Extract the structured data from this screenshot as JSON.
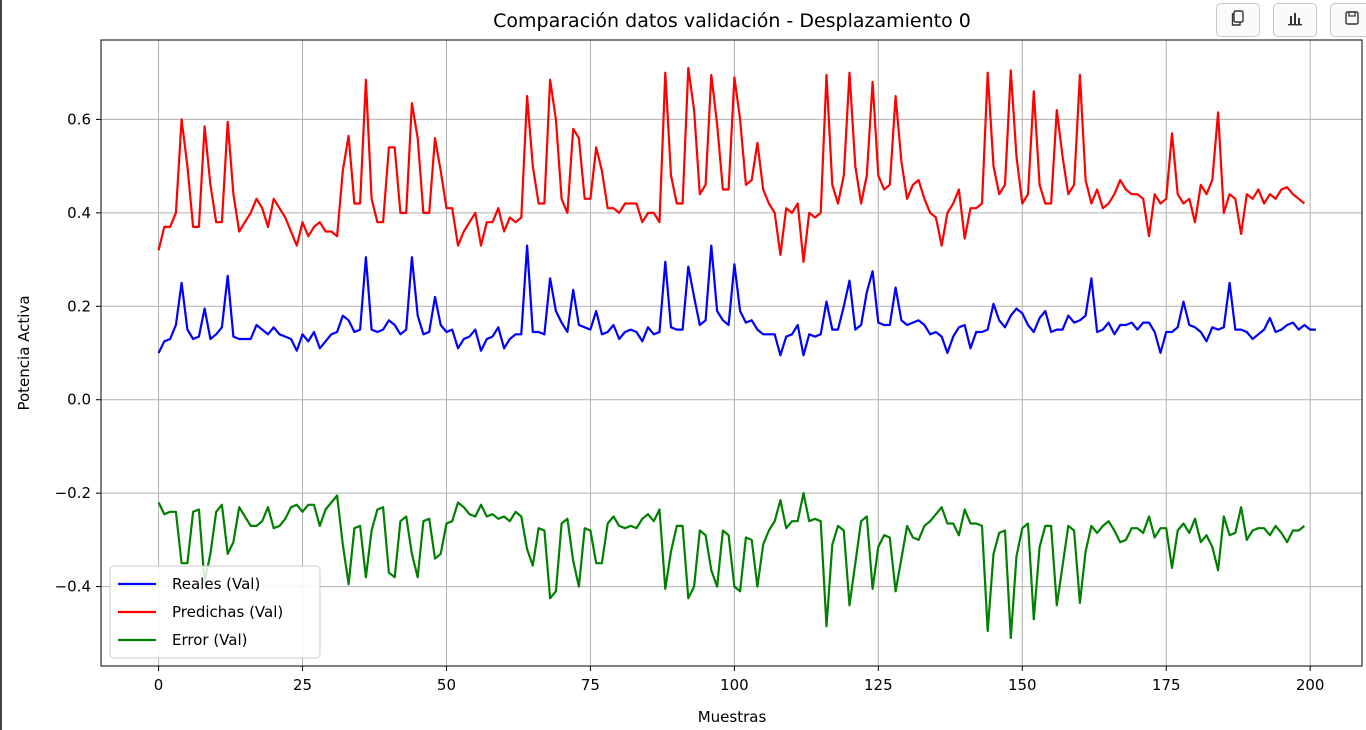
{
  "toolbar": {
    "buttons": [
      {
        "icon": "copy-icon"
      },
      {
        "icon": "bar-chart-icon"
      },
      {
        "icon": "save-icon"
      }
    ]
  },
  "chart_data": {
    "type": "line",
    "title": "Comparación datos validación - Desplazamiento 0",
    "xlabel": "Muestras",
    "ylabel": "Potencia Activa",
    "xlim": [
      -10,
      209
    ],
    "ylim": [
      -0.57,
      0.77
    ],
    "xticks": [
      0,
      25,
      50,
      75,
      100,
      125,
      150,
      175,
      200
    ],
    "xtick_labels": [
      "0",
      "25",
      "50",
      "75",
      "100",
      "125",
      "150",
      "175",
      "200"
    ],
    "yticks": [
      -0.4,
      -0.2,
      0.0,
      0.2,
      0.4,
      0.6
    ],
    "ytick_labels": [
      "−0.4",
      "−0.2",
      "0.0",
      "0.2",
      "0.4",
      "0.6"
    ],
    "grid": true,
    "legend_position": "lower-left",
    "series": [
      {
        "name": "Reales (Val)",
        "color": "#0000ff",
        "values": [
          0.1,
          0.125,
          0.13,
          0.16,
          0.25,
          0.15,
          0.13,
          0.135,
          0.195,
          0.13,
          0.14,
          0.155,
          0.265,
          0.135,
          0.13,
          0.13,
          0.13,
          0.16,
          0.15,
          0.14,
          0.155,
          0.14,
          0.135,
          0.13,
          0.105,
          0.14,
          0.125,
          0.145,
          0.11,
          0.125,
          0.14,
          0.145,
          0.18,
          0.17,
          0.145,
          0.15,
          0.305,
          0.15,
          0.145,
          0.15,
          0.17,
          0.16,
          0.14,
          0.15,
          0.305,
          0.18,
          0.14,
          0.145,
          0.22,
          0.16,
          0.145,
          0.15,
          0.11,
          0.13,
          0.135,
          0.15,
          0.105,
          0.13,
          0.135,
          0.155,
          0.11,
          0.13,
          0.14,
          0.14,
          0.33,
          0.145,
          0.145,
          0.14,
          0.26,
          0.19,
          0.165,
          0.145,
          0.235,
          0.16,
          0.155,
          0.15,
          0.19,
          0.14,
          0.145,
          0.16,
          0.13,
          0.145,
          0.15,
          0.145,
          0.125,
          0.155,
          0.14,
          0.145,
          0.295,
          0.155,
          0.15,
          0.15,
          0.285,
          0.22,
          0.16,
          0.17,
          0.33,
          0.19,
          0.17,
          0.16,
          0.29,
          0.19,
          0.165,
          0.17,
          0.15,
          0.14,
          0.14,
          0.14,
          0.095,
          0.135,
          0.14,
          0.16,
          0.095,
          0.14,
          0.135,
          0.14,
          0.21,
          0.15,
          0.15,
          0.2,
          0.255,
          0.15,
          0.16,
          0.23,
          0.275,
          0.165,
          0.16,
          0.16,
          0.24,
          0.17,
          0.16,
          0.165,
          0.17,
          0.16,
          0.14,
          0.145,
          0.135,
          0.1,
          0.135,
          0.155,
          0.16,
          0.11,
          0.145,
          0.145,
          0.15,
          0.205,
          0.17,
          0.155,
          0.18,
          0.195,
          0.185,
          0.16,
          0.145,
          0.175,
          0.19,
          0.145,
          0.15,
          0.15,
          0.18,
          0.165,
          0.17,
          0.18,
          0.26,
          0.145,
          0.15,
          0.165,
          0.14,
          0.16,
          0.16,
          0.165,
          0.15,
          0.165,
          0.165,
          0.145,
          0.1,
          0.145,
          0.145,
          0.155,
          0.21,
          0.16,
          0.155,
          0.145,
          0.125,
          0.155,
          0.15,
          0.155,
          0.25,
          0.15,
          0.15,
          0.145,
          0.13,
          0.14,
          0.15,
          0.175,
          0.145,
          0.15,
          0.16,
          0.165,
          0.15,
          0.16,
          0.15,
          0.15
        ]
      },
      {
        "name": "Predichas (Val)",
        "color": "#ff0000",
        "values": [
          0.32,
          0.37,
          0.37,
          0.4,
          0.6,
          0.5,
          0.37,
          0.37,
          0.585,
          0.46,
          0.38,
          0.38,
          0.595,
          0.44,
          0.36,
          0.38,
          0.4,
          0.43,
          0.41,
          0.37,
          0.43,
          0.41,
          0.39,
          0.36,
          0.33,
          0.38,
          0.35,
          0.37,
          0.38,
          0.36,
          0.36,
          0.35,
          0.49,
          0.565,
          0.42,
          0.42,
          0.685,
          0.43,
          0.38,
          0.38,
          0.54,
          0.54,
          0.4,
          0.4,
          0.635,
          0.56,
          0.4,
          0.4,
          0.56,
          0.49,
          0.41,
          0.41,
          0.33,
          0.36,
          0.38,
          0.4,
          0.33,
          0.38,
          0.38,
          0.41,
          0.36,
          0.39,
          0.38,
          0.39,
          0.65,
          0.5,
          0.42,
          0.42,
          0.685,
          0.6,
          0.43,
          0.4,
          0.58,
          0.56,
          0.43,
          0.43,
          0.54,
          0.49,
          0.41,
          0.41,
          0.4,
          0.42,
          0.42,
          0.42,
          0.38,
          0.4,
          0.4,
          0.38,
          0.7,
          0.48,
          0.42,
          0.42,
          0.71,
          0.62,
          0.44,
          0.46,
          0.695,
          0.59,
          0.45,
          0.45,
          0.69,
          0.6,
          0.46,
          0.47,
          0.55,
          0.45,
          0.42,
          0.4,
          0.31,
          0.41,
          0.4,
          0.42,
          0.295,
          0.4,
          0.39,
          0.4,
          0.695,
          0.46,
          0.42,
          0.48,
          0.7,
          0.5,
          0.42,
          0.48,
          0.68,
          0.48,
          0.45,
          0.46,
          0.65,
          0.51,
          0.43,
          0.46,
          0.47,
          0.43,
          0.4,
          0.39,
          0.33,
          0.4,
          0.42,
          0.45,
          0.345,
          0.41,
          0.41,
          0.42,
          0.7,
          0.5,
          0.44,
          0.46,
          0.705,
          0.52,
          0.42,
          0.44,
          0.66,
          0.46,
          0.42,
          0.42,
          0.62,
          0.52,
          0.44,
          0.46,
          0.695,
          0.47,
          0.42,
          0.45,
          0.41,
          0.42,
          0.44,
          0.47,
          0.45,
          0.44,
          0.44,
          0.43,
          0.35,
          0.44,
          0.42,
          0.43,
          0.57,
          0.44,
          0.42,
          0.43,
          0.38,
          0.46,
          0.44,
          0.47,
          0.615,
          0.4,
          0.44,
          0.43,
          0.355,
          0.44,
          0.43,
          0.45,
          0.42,
          0.44,
          0.43,
          0.45,
          0.455,
          0.44,
          0.43,
          0.42
        ]
      },
      {
        "name": "Error (Val)",
        "color": "#008000",
        "values": [
          -0.22,
          -0.245,
          -0.24,
          -0.24,
          -0.35,
          -0.35,
          -0.24,
          -0.235,
          -0.39,
          -0.33,
          -0.24,
          -0.225,
          -0.33,
          -0.305,
          -0.23,
          -0.25,
          -0.27,
          -0.27,
          -0.26,
          -0.23,
          -0.275,
          -0.27,
          -0.255,
          -0.23,
          -0.225,
          -0.24,
          -0.225,
          -0.225,
          -0.27,
          -0.235,
          -0.22,
          -0.205,
          -0.31,
          -0.395,
          -0.275,
          -0.27,
          -0.38,
          -0.28,
          -0.235,
          -0.23,
          -0.37,
          -0.38,
          -0.26,
          -0.25,
          -0.33,
          -0.38,
          -0.26,
          -0.255,
          -0.34,
          -0.33,
          -0.265,
          -0.26,
          -0.22,
          -0.23,
          -0.245,
          -0.25,
          -0.225,
          -0.25,
          -0.245,
          -0.255,
          -0.25,
          -0.26,
          -0.24,
          -0.25,
          -0.32,
          -0.355,
          -0.275,
          -0.28,
          -0.425,
          -0.41,
          -0.265,
          -0.255,
          -0.345,
          -0.4,
          -0.275,
          -0.28,
          -0.35,
          -0.35,
          -0.265,
          -0.25,
          -0.27,
          -0.275,
          -0.27,
          -0.275,
          -0.255,
          -0.245,
          -0.26,
          -0.235,
          -0.405,
          -0.325,
          -0.27,
          -0.27,
          -0.425,
          -0.4,
          -0.28,
          -0.29,
          -0.365,
          -0.4,
          -0.28,
          -0.29,
          -0.4,
          -0.41,
          -0.295,
          -0.3,
          -0.4,
          -0.31,
          -0.28,
          -0.26,
          -0.215,
          -0.275,
          -0.26,
          -0.26,
          -0.2,
          -0.26,
          -0.255,
          -0.26,
          -0.485,
          -0.31,
          -0.27,
          -0.28,
          -0.44,
          -0.35,
          -0.26,
          -0.25,
          -0.405,
          -0.315,
          -0.29,
          -0.295,
          -0.41,
          -0.34,
          -0.27,
          -0.295,
          -0.3,
          -0.27,
          -0.26,
          -0.245,
          -0.23,
          -0.265,
          -0.265,
          -0.29,
          -0.235,
          -0.265,
          -0.265,
          -0.27,
          -0.495,
          -0.33,
          -0.285,
          -0.28,
          -0.51,
          -0.335,
          -0.275,
          -0.265,
          -0.47,
          -0.315,
          -0.27,
          -0.27,
          -0.44,
          -0.355,
          -0.27,
          -0.28,
          -0.435,
          -0.325,
          -0.27,
          -0.285,
          -0.27,
          -0.26,
          -0.28,
          -0.305,
          -0.3,
          -0.275,
          -0.275,
          -0.285,
          -0.25,
          -0.295,
          -0.275,
          -0.275,
          -0.36,
          -0.28,
          -0.265,
          -0.285,
          -0.255,
          -0.305,
          -0.29,
          -0.315,
          -0.365,
          -0.25,
          -0.29,
          -0.285,
          -0.23,
          -0.3,
          -0.28,
          -0.275,
          -0.275,
          -0.29,
          -0.27,
          -0.285,
          -0.305,
          -0.28,
          -0.28,
          -0.27
        ]
      }
    ]
  }
}
